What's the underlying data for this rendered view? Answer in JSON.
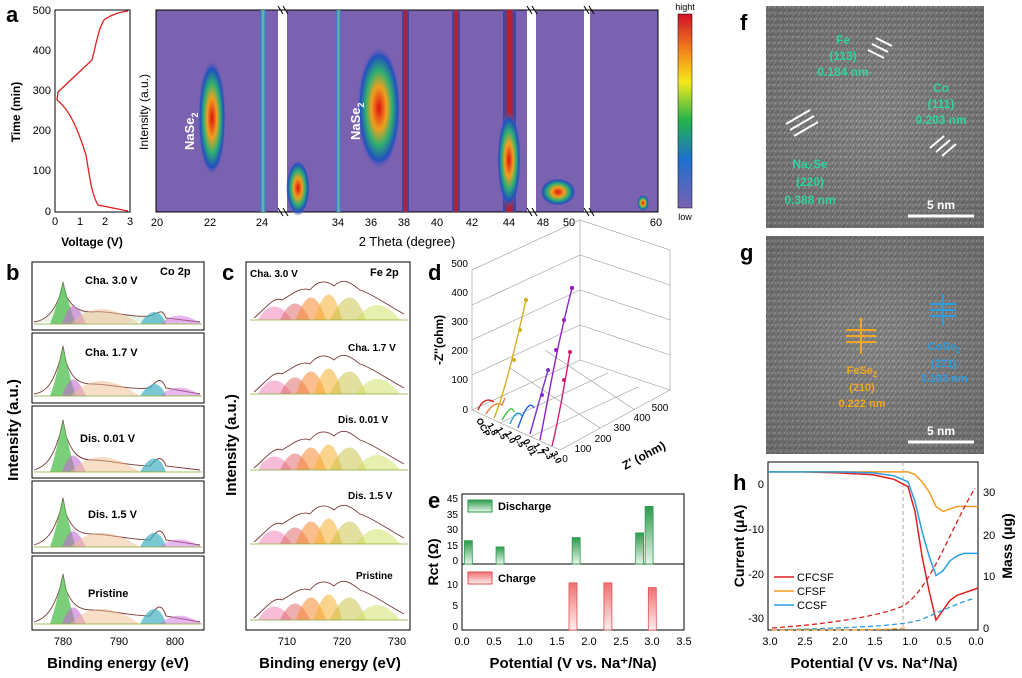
{
  "panel_letters": {
    "a": "a",
    "b": "b",
    "c": "c",
    "d": "d",
    "e": "e",
    "f": "f",
    "g": "g",
    "h": "h"
  },
  "panel_a": {
    "left_ylabel": "Time (min)",
    "left_xlabel": "Voltage (V)",
    "left_yticks": [
      "0",
      "100",
      "200",
      "300",
      "400",
      "500"
    ],
    "left_xticks": [
      "0",
      "1",
      "2",
      "3"
    ],
    "heatmap_ylabel": "Intensity (a.u.)",
    "heatmap_xlabel": "2 Theta (degree)",
    "heatmap_xticks": [
      "20",
      "22",
      "24",
      "34",
      "36",
      "38",
      "40",
      "42",
      "44",
      "48",
      "50",
      "60"
    ],
    "annotation_1": "NaSe",
    "annotation_1_sub": "2",
    "annotation_2": "NaSe",
    "annotation_2_sub": "2",
    "colorbar_top": "hight",
    "colorbar_bottom": "low",
    "colors": {
      "background": "#7b62b0",
      "hot": "#e01010"
    }
  },
  "panel_b": {
    "tag": "Co 2p",
    "curves": [
      "Cha. 3.0 V",
      "Cha. 1.7 V",
      "Dis. 0.01 V",
      "Dis. 1.5 V",
      "Pristine"
    ],
    "ylabel": "Intensity (a.u.)",
    "xlabel": "Binding energy (eV)",
    "xticks": [
      "780",
      "790",
      "800"
    ]
  },
  "panel_c": {
    "tag": "Fe 2p",
    "curves": [
      "Cha. 3.0 V",
      "Cha. 1.7 V",
      "Dis. 0.01 V",
      "Dis. 1.5 V",
      "Pristine"
    ],
    "ylabel": "Intensity (a.u.)",
    "xlabel": "Binding energy (eV)",
    "xticks": [
      "710",
      "720",
      "730"
    ]
  },
  "panel_d": {
    "zlabel": "-Z''(ohm)",
    "xlabel": "Z' (ohm)",
    "zticks": [
      "0",
      "100",
      "200",
      "300",
      "400",
      "500"
    ],
    "xticks": [
      "0",
      "100",
      "200",
      "300",
      "400",
      "500"
    ],
    "series_labels": [
      "OCP",
      "1.8",
      "1.5",
      "1.0",
      "0.5",
      "0.01",
      "1.7",
      "2.3",
      "3.0"
    ]
  },
  "panel_e": {
    "ylabel": "Rct (Ω)",
    "xlabel": "Potential (V vs. Na⁺/Na)",
    "legend_top": "Discharge",
    "legend_bottom": "Charge",
    "xticks": [
      "0.0",
      "0.5",
      "1.0",
      "1.5",
      "2.0",
      "2.5",
      "3.0",
      "3.5"
    ],
    "top_yticks": [
      "0",
      "5",
      "10",
      "15",
      "20",
      "25",
      "30",
      "35",
      "40",
      "45"
    ],
    "bottom_yticks": [
      "0",
      "5",
      "10"
    ]
  },
  "panel_f": {
    "fe_label": "Fe",
    "fe_hkl": "(113)",
    "fe_d": "0.184 nm",
    "co_label": "Co",
    "co_hkl": "(111)",
    "co_d": "0.203 nm",
    "na_label": "Na₂Se",
    "na_hkl": "(220)",
    "na_d": "0.388 nm",
    "scale": "5 nm"
  },
  "panel_g": {
    "fese_label": "FeSe",
    "fese_sub": "2",
    "fese_hkl": "(210)",
    "fese_d": "0.222 nm",
    "cose_label": "CoSe",
    "cose_sub": "2",
    "cose_hkl": "(221)",
    "cose_d": "0.193 nm",
    "scale": "5 nm"
  },
  "panel_h": {
    "ylabel_left": "Current (μA)",
    "ylabel_right": "Mass (μg)",
    "xlabel": "Potential (V vs. Na⁺/Na)",
    "xticks": [
      "3.0",
      "2.5",
      "2.0",
      "1.5",
      "1.0",
      "0.5",
      "0.0"
    ],
    "yticks_left": [
      "0",
      "-10",
      "-20",
      "-30"
    ],
    "yticks_right": [
      "0",
      "10",
      "20",
      "30"
    ],
    "legend": [
      "CFCSF",
      "CFSF",
      "CCSF"
    ],
    "colors": {
      "CFCSF": "#e02020",
      "CFSF": "#f59a20",
      "CCSF": "#2a9ee0"
    }
  },
  "chart_data": [
    {
      "type": "bar",
      "title": "",
      "xlabel": "Potential (V vs. Na⁺/Na)",
      "ylabel": "Rct (Ω)",
      "series": [
        {
          "name": "Discharge",
          "x": [
            0.1,
            0.6,
            1.8,
            2.8,
            2.95
          ],
          "values": [
            15,
            11,
            17,
            20,
            37
          ]
        },
        {
          "name": "Charge",
          "x": [
            1.75,
            2.3,
            3.0
          ],
          "values": [
            10,
            10,
            9
          ]
        }
      ],
      "xlim": [
        0,
        3.5
      ],
      "ylim": [
        0,
        45
      ]
    },
    {
      "type": "line",
      "title": "",
      "xlabel": "Potential (V vs. Na⁺/Na)",
      "ylabel": "Current (μA)",
      "x": [
        3.0,
        2.5,
        2.0,
        1.5,
        1.2,
        1.0,
        0.9,
        0.8,
        0.7,
        0.6,
        0.5,
        0.4,
        0.3,
        0.2,
        0.1,
        0.0
      ],
      "series": [
        {
          "name": "CFCSF",
          "values": [
            0,
            0,
            -0.2,
            -0.6,
            -1.5,
            -3,
            -8,
            -17,
            -24,
            -30,
            -28,
            -26,
            -25,
            -24.5,
            -24,
            -23.5
          ]
        },
        {
          "name": "CFSF",
          "values": [
            0,
            0,
            0,
            0,
            0,
            0,
            -0.5,
            -2,
            -4,
            -7,
            -8,
            -7.5,
            -7,
            -7,
            -7,
            -7
          ]
        },
        {
          "name": "CCSF",
          "values": [
            0,
            0,
            0,
            -0.2,
            -0.8,
            -2,
            -6,
            -12,
            -17,
            -21,
            -20,
            -18,
            -17,
            -16.5,
            -16.5,
            -16.5
          ]
        }
      ],
      "xlim": [
        3.0,
        0.0
      ],
      "ylim": [
        -32,
        2
      ],
      "y2label": "Mass (μg)",
      "y2lim": [
        0,
        32
      ]
    }
  ]
}
